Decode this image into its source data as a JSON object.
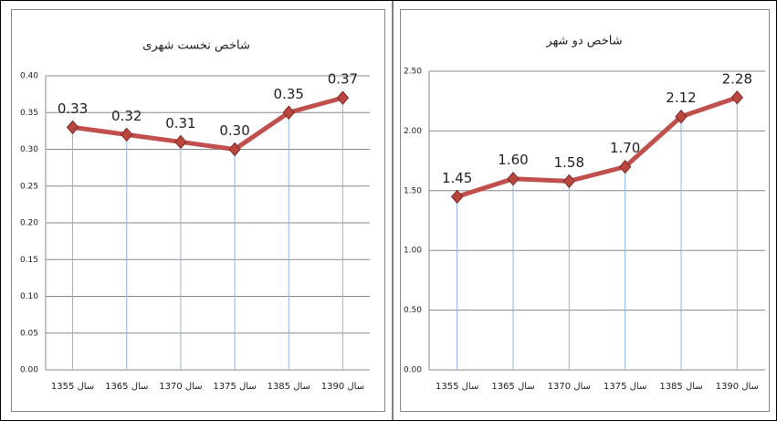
{
  "chart_data": [
    {
      "type": "line",
      "title": "شاخص نخست شهری",
      "categories": [
        "سال 1355",
        "سال 1365",
        "سال 1370",
        "سال 1375",
        "سال 1385",
        "سال 1390"
      ],
      "values": [
        0.33,
        0.32,
        0.31,
        0.3,
        0.35,
        0.37
      ],
      "value_labels": [
        "0.33",
        "0.32",
        "0.31",
        "0.30",
        "0.35",
        "0.37"
      ],
      "color": "#c0504d",
      "ylim": [
        0,
        0.4
      ],
      "yticks": [
        {
          "value": 0,
          "label": "0.00"
        },
        {
          "value": 0.05,
          "label": "0.05"
        },
        {
          "value": 0.1,
          "label": "0.10"
        },
        {
          "value": 0.15,
          "label": "0.15"
        },
        {
          "value": 0.2,
          "label": "0.20"
        },
        {
          "value": 0.25,
          "label": "0.25"
        },
        {
          "value": 0.3,
          "label": "0.30"
        },
        {
          "value": 0.35,
          "label": "0.35"
        },
        {
          "value": 0.4,
          "label": "0.40"
        }
      ],
      "grid": true
    },
    {
      "type": "line",
      "title": "شاخص دو شهر",
      "categories": [
        "سال 1355",
        "سال 1365",
        "سال 1370",
        "سال 1375",
        "سال 1385",
        "سال 1390"
      ],
      "values": [
        1.45,
        1.6,
        1.58,
        1.7,
        2.12,
        2.28
      ],
      "value_labels": [
        "1.45",
        "1.60",
        "1.58",
        "1.70",
        "2.12",
        "2.28"
      ],
      "color": "#c0504d",
      "ylim": [
        0,
        2.5
      ],
      "yticks": [
        {
          "value": 0,
          "label": "0.00"
        },
        {
          "value": 0.5,
          "label": "0.50"
        },
        {
          "value": 1,
          "label": "1.00"
        },
        {
          "value": 1.5,
          "label": "1.50"
        },
        {
          "value": 2,
          "label": "2.00"
        },
        {
          "value": 2.5,
          "label": "2.50"
        }
      ],
      "grid": true
    }
  ]
}
